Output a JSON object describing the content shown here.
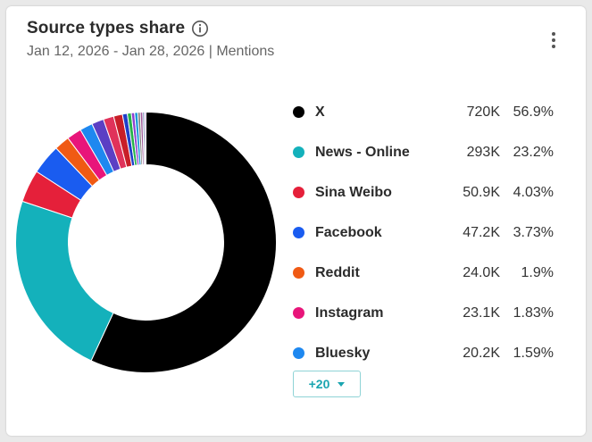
{
  "card": {
    "title": "Source types share",
    "subtitle": "Jan 12, 2026 - Jan 28, 2026 | Mentions",
    "more_label": "+20"
  },
  "icons": {
    "info": "info-icon",
    "menu": "more-vertical-icon",
    "more": "chevron-down-icon"
  },
  "chart_data": {
    "type": "pie",
    "donut": true,
    "legend_placement": "right",
    "slices": [
      {
        "label": "X",
        "value_label": "720K",
        "percent_label": "56.9%",
        "percent": 56.9,
        "color": "#000000"
      },
      {
        "label": "News - Online",
        "value_label": "293K",
        "percent_label": "23.2%",
        "percent": 23.2,
        "color": "#14b1bb"
      },
      {
        "label": "Sina Weibo",
        "value_label": "50.9K",
        "percent_label": "4.03%",
        "percent": 4.03,
        "color": "#e5203a"
      },
      {
        "label": "Facebook",
        "value_label": "47.2K",
        "percent_label": "3.73%",
        "percent": 3.73,
        "color": "#1a5cf0"
      },
      {
        "label": "Reddit",
        "value_label": "24.0K",
        "percent_label": "1.9%",
        "percent": 1.9,
        "color": "#f05a14"
      },
      {
        "label": "Instagram",
        "value_label": "23.1K",
        "percent_label": "1.83%",
        "percent": 1.83,
        "color": "#e8157a"
      },
      {
        "label": "Bluesky",
        "value_label": "20.2K",
        "percent_label": "1.59%",
        "percent": 1.59,
        "color": "#1e88f0"
      }
    ],
    "other_slices": [
      {
        "percent": 1.5,
        "color": "#5b3fc4"
      },
      {
        "percent": 1.3,
        "color": "#e0325a"
      },
      {
        "percent": 1.1,
        "color": "#c81e28"
      },
      {
        "percent": 0.6,
        "color": "#1f3fc9"
      },
      {
        "percent": 0.5,
        "color": "#26b34a"
      },
      {
        "percent": 0.4,
        "color": "#8d3fd0"
      },
      {
        "percent": 0.4,
        "color": "#1a9bd8"
      },
      {
        "percent": 0.3,
        "color": "#7a7a7a"
      },
      {
        "percent": 0.3,
        "color": "#a05a9a"
      },
      {
        "percent": 0.2,
        "color": "#4a6ea0"
      },
      {
        "percent": 0.2,
        "color": "#c7a5d9"
      }
    ]
  }
}
